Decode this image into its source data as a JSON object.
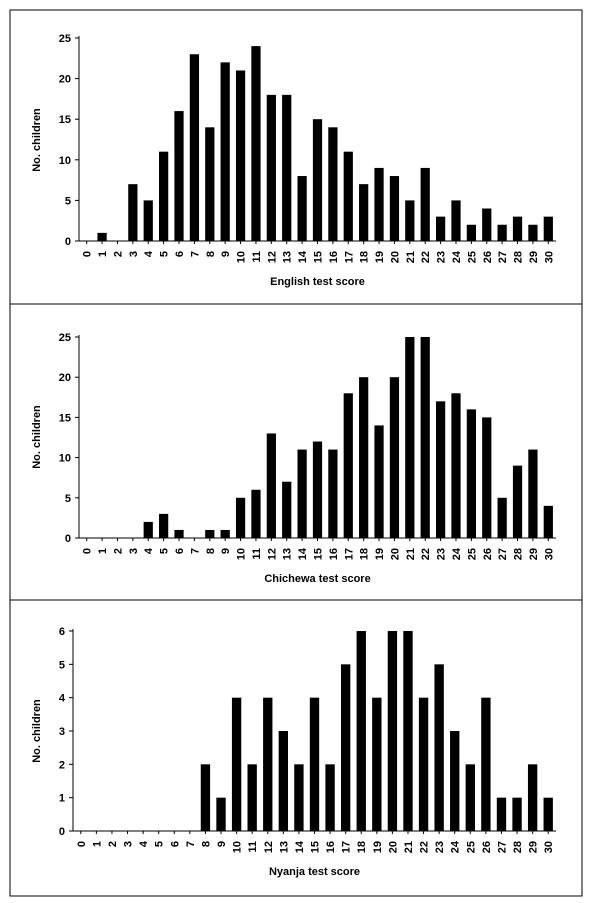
{
  "chart_data": [
    {
      "type": "bar",
      "xlabel": "English test score",
      "ylabel": "No. children",
      "ylim": [
        0,
        25
      ],
      "yticks": [
        0,
        5,
        10,
        15,
        20,
        25
      ],
      "categories": [
        "0",
        "1",
        "2",
        "3",
        "4",
        "5",
        "6",
        "7",
        "8",
        "9",
        "10",
        "11",
        "12",
        "13",
        "14",
        "15",
        "16",
        "17",
        "18",
        "19",
        "20",
        "21",
        "22",
        "23",
        "24",
        "25",
        "26",
        "27",
        "28",
        "29",
        "30"
      ],
      "values": [
        0,
        1,
        0,
        7,
        5,
        11,
        16,
        23,
        14,
        22,
        21,
        24,
        18,
        18,
        8,
        15,
        14,
        11,
        7,
        9,
        8,
        5,
        9,
        3,
        5,
        2,
        4,
        2,
        3,
        2,
        3
      ],
      "grid": false
    },
    {
      "type": "bar",
      "xlabel": "Chichewa test score",
      "ylabel": "No. children",
      "ylim": [
        0,
        25
      ],
      "yticks": [
        0,
        5,
        10,
        15,
        20,
        25
      ],
      "categories": [
        "0",
        "1",
        "2",
        "3",
        "4",
        "5",
        "6",
        "7",
        "8",
        "9",
        "10",
        "11",
        "12",
        "13",
        "14",
        "15",
        "16",
        "17",
        "18",
        "19",
        "20",
        "21",
        "22",
        "23",
        "24",
        "25",
        "26",
        "27",
        "28",
        "29",
        "30"
      ],
      "values": [
        0,
        0,
        0,
        0,
        2,
        3,
        1,
        0,
        1,
        1,
        5,
        6,
        13,
        7,
        11,
        12,
        11,
        18,
        20,
        14,
        20,
        25,
        25,
        17,
        18,
        16,
        15,
        5,
        9,
        11,
        4
      ],
      "grid": false
    },
    {
      "type": "bar",
      "xlabel": "Nyanja test score",
      "ylabel": "No. children",
      "ylim": [
        0,
        6
      ],
      "yticks": [
        0,
        1,
        2,
        3,
        4,
        5,
        6
      ],
      "categories": [
        "0",
        "1",
        "2",
        "3",
        "4",
        "5",
        "6",
        "7",
        "8",
        "9",
        "10",
        "11",
        "12",
        "13",
        "14",
        "15",
        "16",
        "17",
        "18",
        "19",
        "20",
        "21",
        "22",
        "23",
        "24",
        "25",
        "26",
        "27",
        "28",
        "29",
        "30"
      ],
      "values": [
        0,
        0,
        0,
        0,
        0,
        0,
        0,
        0,
        2,
        1,
        4,
        2,
        4,
        3,
        2,
        4,
        2,
        5,
        6,
        4,
        6,
        6,
        4,
        5,
        3,
        2,
        4,
        1,
        1,
        2,
        1
      ],
      "grid": false
    }
  ]
}
